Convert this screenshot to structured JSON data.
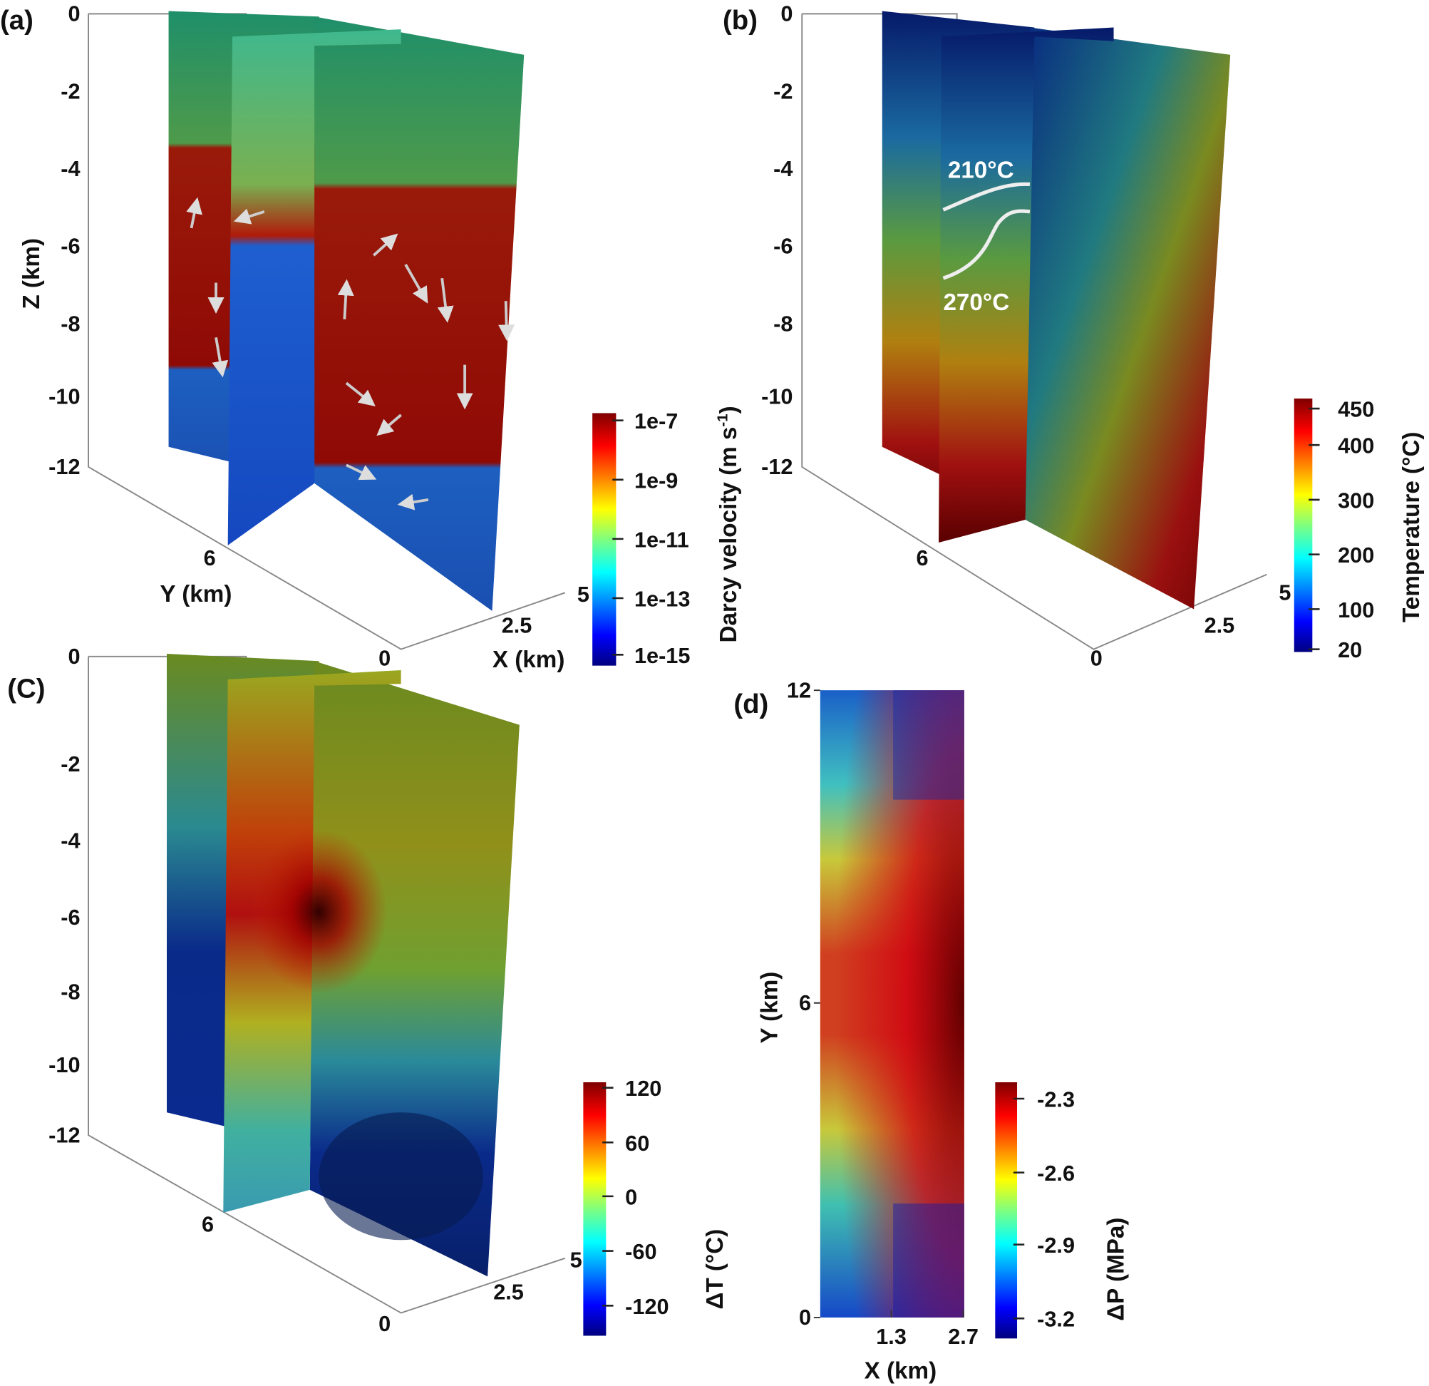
{
  "chart_data": [
    {
      "type": "heatmap",
      "panel_label": "(a)",
      "title": "",
      "zlabel": "Z (km)",
      "ylabel": "Y (km)",
      "xlabel": "X (km)",
      "z_ticks": [
        "0",
        "-2",
        "-4",
        "-6",
        "-8",
        "-10",
        "-12"
      ],
      "y_ticks": [
        "6",
        "0"
      ],
      "x_ticks": [
        "2.5",
        "5"
      ],
      "colorbar": {
        "label": "Darcy velocity (m s",
        "label_sup": "-1",
        "label_end": ")",
        "ticks": [
          "1e-7",
          "1e-9",
          "1e-11",
          "1e-13",
          "1e-15"
        ],
        "range": [
          1e-15,
          1e-07
        ],
        "scale": "log",
        "colormap": "jet"
      },
      "annotations": [
        "velocity vectors (arrows)"
      ]
    },
    {
      "type": "heatmap",
      "panel_label": "(b)",
      "z_ticks": [
        "0",
        "-2",
        "-4",
        "-6",
        "-8",
        "-10",
        "-12"
      ],
      "y_ticks": [
        "6",
        "0"
      ],
      "x_ticks": [
        "2.5",
        "5"
      ],
      "colorbar": {
        "label": "Temperature (°C)",
        "ticks": [
          "450",
          "400",
          "300",
          "200",
          "100",
          "20"
        ],
        "range": [
          20,
          470
        ],
        "colormap": "jet"
      },
      "contours": [
        "210°C",
        "270°C"
      ]
    },
    {
      "type": "heatmap",
      "panel_label": "(C)",
      "z_ticks": [
        "0",
        "-2",
        "-4",
        "-6",
        "-8",
        "-10",
        "-12"
      ],
      "y_ticks": [
        "6",
        "0"
      ],
      "x_ticks": [
        "2.5",
        "5"
      ],
      "colorbar": {
        "label": "ΔT (°C)",
        "ticks": [
          "120",
          "60",
          "0",
          "-60",
          "-120"
        ],
        "range": [
          -140,
          130
        ],
        "colormap": "jet"
      }
    },
    {
      "type": "heatmap",
      "panel_label": "(d)",
      "xlabel": "X (km)",
      "ylabel": "Y (km)",
      "x_ticks": [
        "1.3",
        "2.7"
      ],
      "y_ticks": [
        "12",
        "6",
        "0"
      ],
      "xlim": [
        0,
        2.7
      ],
      "ylim": [
        0,
        12
      ],
      "colorbar": {
        "label": "ΔP (MPa)",
        "ticks": [
          "-2.3",
          "-2.6",
          "-2.9",
          "-3.2"
        ],
        "range": [
          -3.3,
          -2.2
        ],
        "colormap": "jet"
      }
    }
  ]
}
